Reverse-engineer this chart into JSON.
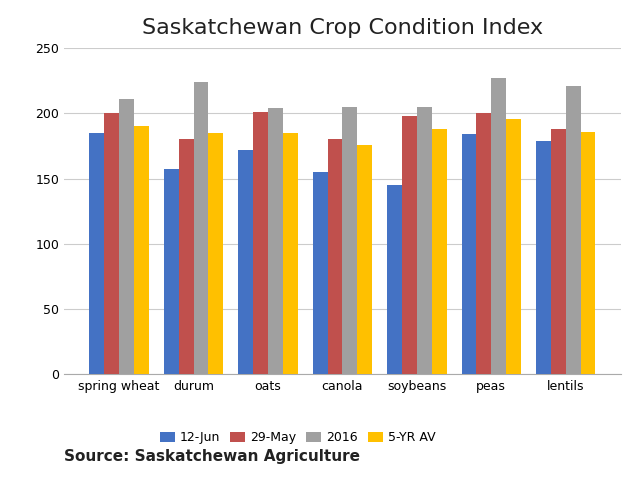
{
  "title": "Saskatchewan Crop Condition Index",
  "categories": [
    "spring wheat",
    "durum",
    "oats",
    "canola",
    "soybeans",
    "peas",
    "lentils"
  ],
  "series": {
    "12-Jun": [
      185,
      157,
      172,
      155,
      145,
      184,
      179
    ],
    "29-May": [
      200,
      180,
      201,
      180,
      198,
      200,
      188
    ],
    "2016": [
      211,
      224,
      204,
      205,
      205,
      227,
      221
    ],
    "5-YR AV": [
      190,
      185,
      185,
      176,
      188,
      196,
      186
    ]
  },
  "colors": {
    "12-Jun": "#4472C4",
    "29-May": "#C0504D",
    "2016": "#A0A0A0",
    "5-YR AV": "#FFC000"
  },
  "legend_labels": [
    "12-Jun",
    "29-May",
    "2016",
    "5-YR AV"
  ],
  "ylim": [
    0,
    250
  ],
  "yticks": [
    0,
    50,
    100,
    150,
    200,
    250
  ],
  "source_text": "Source: Saskatchewan Agriculture",
  "background_color": "#FFFFFF",
  "grid_color": "#CCCCCC",
  "title_fontsize": 16,
  "source_fontsize": 11,
  "legend_fontsize": 9,
  "tick_fontsize": 9,
  "bar_width": 0.2,
  "figure_width": 6.4,
  "figure_height": 4.8,
  "figure_dpi": 100
}
